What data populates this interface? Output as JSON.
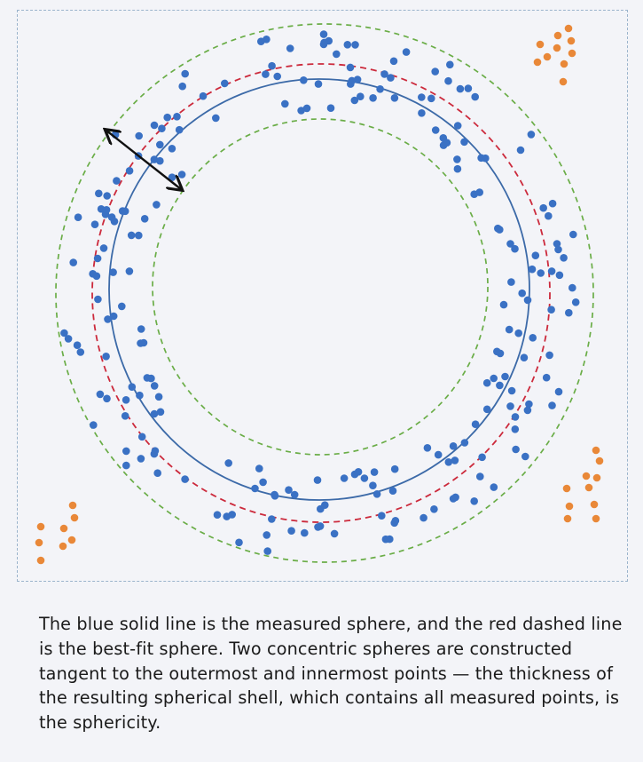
{
  "caption": "The blue solid line is the measured sphere, and the red dashed line is the best-fit sphere. Two concentric spheres are constructed tangent to the outermost and innermost points — the thickness of the resulting spherical shell, which contains all measured points, is the sphericity.",
  "colors": {
    "measured_sphere": "#3c6aa8",
    "best_fit_sphere": "#cc2a3c",
    "enveloping_spheres": "#6aad47",
    "measured_points": "#3a71c4",
    "outlier_points": "#e98838",
    "arrow": "#111111",
    "frame": "#9bb4cc"
  },
  "icons": {
    "thickness_arrow": "double-headed-arrow-icon"
  }
}
